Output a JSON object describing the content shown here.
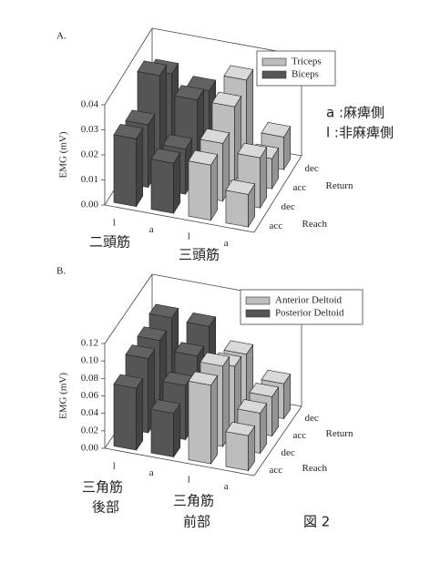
{
  "chart_data": [
    {
      "type": "bar3d",
      "title": "A.",
      "y_label": "EMG (mV)",
      "categories": [
        "l",
        "a",
        "l",
        "a"
      ],
      "depth_categories": [
        "acc",
        "dec",
        "acc",
        "dec"
      ],
      "groups": [
        "Reach",
        "Return"
      ],
      "ylim": [
        0,
        0.04
      ],
      "yticks": [
        {
          "value": 0,
          "label": "0.00"
        },
        0.01,
        0.02,
        0.03,
        0.04
      ],
      "series": [
        {
          "name": "Triceps",
          "color": "#bdbdbd",
          "values": [
            [
              0.022,
              0.023,
              0.03,
              0.033
            ],
            [
              0.013,
              0.02,
              0.012,
              0.013
            ]
          ]
        },
        {
          "name": "Biceps",
          "color": "#555555",
          "values": [
            [
              0.027,
              0.025,
              0.037,
              0.03
            ],
            [
              0.02,
              0.018,
              0.03,
              0.026
            ]
          ]
        }
      ]
    },
    {
      "type": "bar3d",
      "title": "B.",
      "y_label": "EMG (mV)",
      "categories": [
        "l",
        "a",
        "l",
        "a"
      ],
      "depth_categories": [
        "acc",
        "dec",
        "acc",
        "dec"
      ],
      "groups": [
        "Reach",
        "Return"
      ],
      "ylim": [
        0,
        0.12
      ],
      "yticks": [
        {
          "value": 0,
          "label": "0.00"
        },
        0.02,
        0.04,
        0.06,
        0.08,
        {
          "value": 0.1,
          "label": "0.10"
        },
        0.12
      ],
      "series": [
        {
          "name": "Anterior Deltoid",
          "color": "#bdbdbd",
          "values": [
            [
              0.09,
              0.092,
              0.072,
              0.066
            ],
            [
              0.04,
              0.046,
              0.045,
              0.04
            ]
          ]
        },
        {
          "name": "Posterior Deltoid",
          "color": "#555555",
          "values": [
            [
              0.071,
              0.085,
              0.086,
              0.092
            ],
            [
              0.05,
              0.062,
              0.076,
              0.09
            ]
          ]
        }
      ]
    }
  ],
  "annotations": {
    "side_a": "a :麻痺側",
    "side_l": "l :非麻痺側",
    "biceps": "二頭筋",
    "triceps": "三頭筋",
    "posterior_1": "三角筋",
    "posterior_2": "後部",
    "anterior_1": "三角筋",
    "anterior_2": "前部",
    "figure": "図 2"
  }
}
